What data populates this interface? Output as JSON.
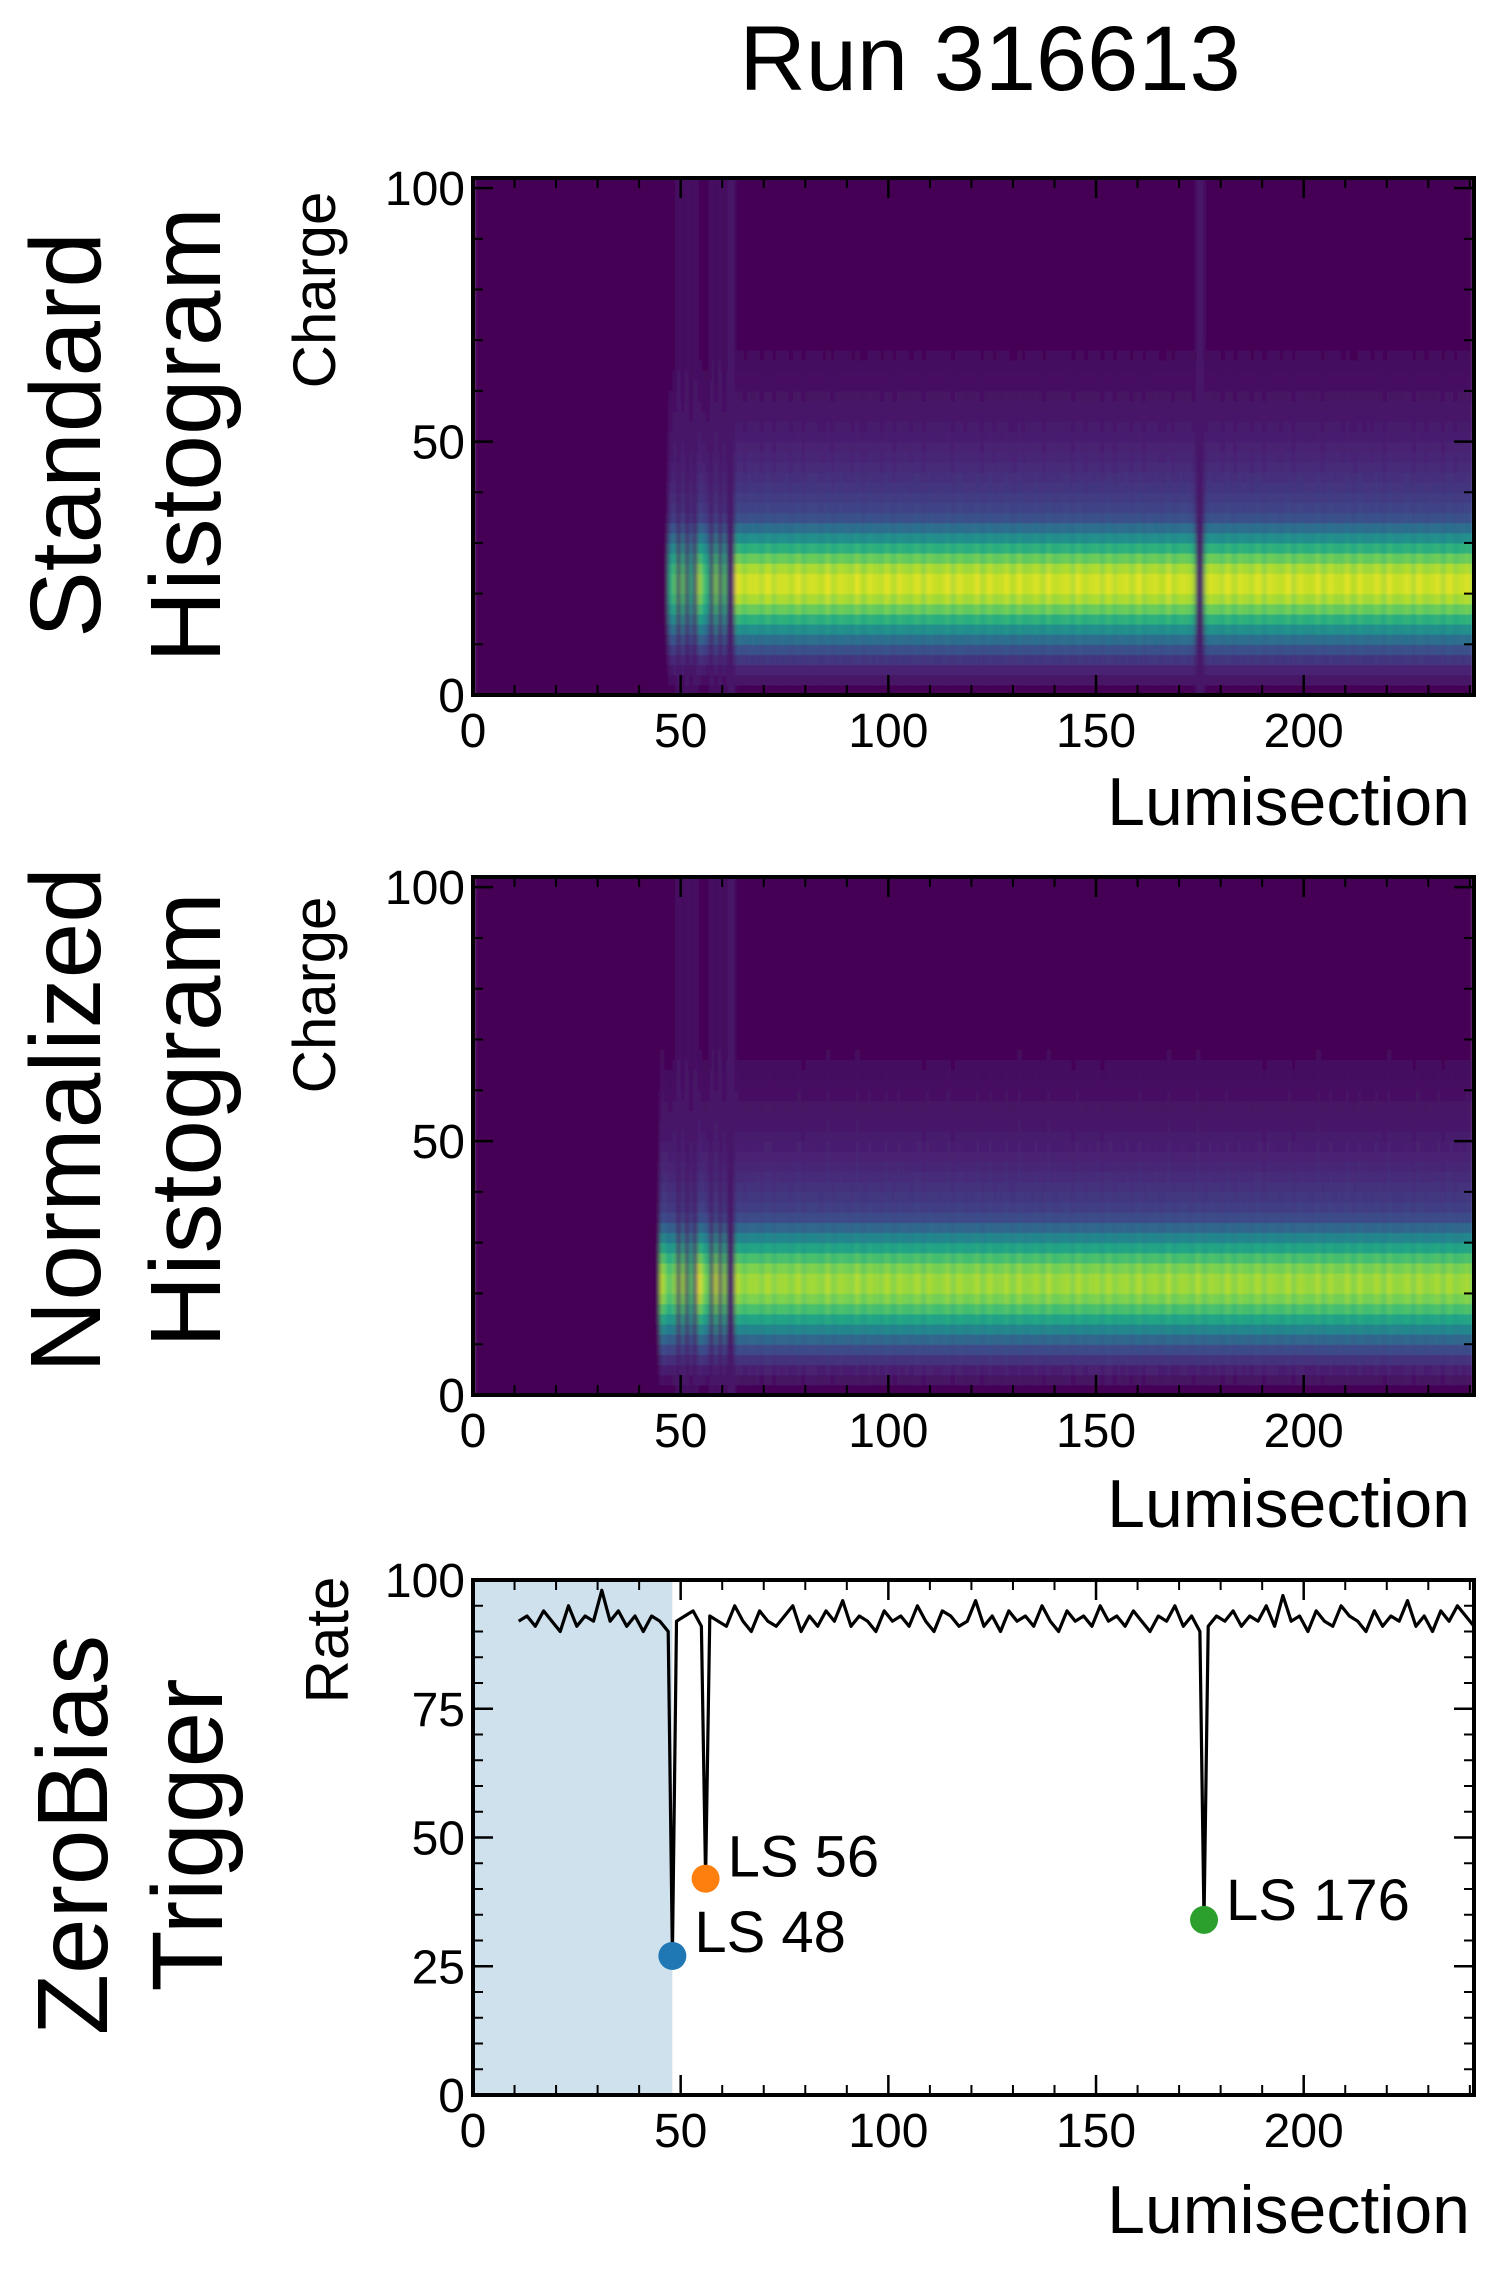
{
  "title": "Run 316613",
  "panels": [
    {
      "id": "standard",
      "row_label": [
        "Standard",
        "Histogram"
      ],
      "type": "heatmap",
      "xlabel": "Lumisection",
      "ylabel": "Charge",
      "xlim": [
        0,
        241
      ],
      "ylim": [
        0,
        102
      ],
      "xticks": [
        0,
        50,
        100,
        150,
        200
      ],
      "yticks": [
        0,
        50,
        100
      ],
      "colormap": "viridis",
      "description_values": {
        "empty_until_ls": 47,
        "band_center_charge": 22,
        "band_halfwidth_charge": 8,
        "gap_ls": [
          49.5,
          51.5,
          53.5,
          57.5,
          59.5,
          62,
          175
        ]
      }
    },
    {
      "id": "normalized",
      "row_label": [
        "Normalized",
        "Histogram"
      ],
      "type": "heatmap",
      "xlabel": "Lumisection",
      "ylabel": "Charge",
      "xlim": [
        0,
        241
      ],
      "ylim": [
        0,
        102
      ],
      "xticks": [
        0,
        50,
        100,
        150,
        200
      ],
      "yticks": [
        0,
        50,
        100
      ],
      "colormap": "viridis",
      "description_values": {
        "empty_until_ls": 45,
        "band_center_charge": 22,
        "band_halfwidth_charge": 8,
        "gap_ls": [
          49.5,
          51.5,
          53.5,
          57.5,
          59.5,
          62
        ]
      }
    },
    {
      "id": "zerobias",
      "row_label": [
        "ZeroBias",
        "Trigger"
      ],
      "type": "line",
      "xlabel": "Lumisection",
      "ylabel": "Rate",
      "xlim": [
        0,
        241
      ],
      "ylim": [
        0,
        100
      ],
      "xticks": [
        0,
        50,
        100,
        150,
        200
      ],
      "yticks": [
        0,
        25,
        50,
        75,
        100
      ],
      "shaded_region_x": [
        0,
        48
      ],
      "shade_color": "#d0e1ee",
      "line_color": "#000000",
      "annotations": [
        {
          "label": "LS 48",
          "x": 48,
          "y": 27,
          "color": "#1f77b4"
        },
        {
          "label": "LS 56",
          "x": 56,
          "y": 42,
          "color": "#ff7f0e"
        },
        {
          "label": "LS 176",
          "x": 176,
          "y": 34,
          "color": "#2ca02c"
        }
      ]
    }
  ],
  "chart_data": [
    {
      "type": "heatmap",
      "title": "Standard Histogram",
      "xlabel": "Lumisection",
      "ylabel": "Charge",
      "x_range": [
        0,
        241
      ],
      "y_range": [
        0,
        102
      ],
      "notes_values": {
        "filled_from_ls": 47,
        "peak_charge": 22,
        "dip_ls": 175
      }
    },
    {
      "type": "heatmap",
      "title": "Normalized Histogram",
      "xlabel": "Lumisection",
      "ylabel": "Charge",
      "x_range": [
        0,
        241
      ],
      "y_range": [
        0,
        102
      ],
      "notes_values": {
        "filled_from_ls": 45,
        "peak_charge": 22
      }
    },
    {
      "type": "line",
      "title": "ZeroBias Trigger",
      "xlabel": "Lumisection",
      "ylabel": "Rate",
      "xlim": [
        0,
        241
      ],
      "ylim": [
        0,
        100
      ],
      "series": [
        {
          "x": [
            11,
            13,
            15,
            17,
            19,
            21,
            23,
            25,
            27,
            29,
            31,
            33,
            35,
            37,
            39,
            41,
            43,
            45,
            47,
            48,
            49,
            51,
            53,
            55,
            56,
            57,
            59,
            61,
            63,
            65,
            67,
            69,
            71,
            73,
            75,
            77,
            79,
            81,
            83,
            85,
            87,
            89,
            91,
            93,
            95,
            97,
            99,
            101,
            103,
            105,
            107,
            109,
            111,
            113,
            115,
            117,
            119,
            121,
            123,
            125,
            127,
            129,
            131,
            133,
            135,
            137,
            139,
            141,
            143,
            145,
            147,
            149,
            151,
            153,
            155,
            157,
            159,
            161,
            163,
            165,
            167,
            169,
            171,
            173,
            175,
            176,
            177,
            179,
            181,
            183,
            185,
            187,
            189,
            191,
            193,
            195,
            197,
            199,
            201,
            203,
            205,
            207,
            209,
            211,
            213,
            215,
            217,
            219,
            221,
            223,
            225,
            227,
            229,
            231,
            233,
            235,
            237,
            239,
            241
          ],
          "y": [
            92,
            93,
            91,
            94,
            92,
            90,
            95,
            91,
            93,
            92,
            98,
            92,
            94,
            91,
            93,
            90,
            93,
            92,
            90,
            27,
            92,
            93,
            94,
            91,
            42,
            93,
            92,
            91,
            95,
            92,
            90,
            94,
            92,
            91,
            93,
            95,
            90,
            93,
            91,
            94,
            92,
            96,
            91,
            93,
            92,
            90,
            94,
            92,
            93,
            91,
            95,
            92,
            90,
            94,
            93,
            91,
            92,
            96,
            91,
            93,
            90,
            94,
            92,
            93,
            91,
            95,
            92,
            90,
            94,
            92,
            93,
            91,
            95,
            92,
            93,
            91,
            94,
            92,
            90,
            93,
            92,
            95,
            91,
            93,
            90,
            34,
            91,
            93,
            92,
            94,
            91,
            93,
            92,
            95,
            91,
            97,
            92,
            93,
            90,
            94,
            92,
            91,
            95,
            93,
            92,
            90,
            94,
            91,
            93,
            92,
            96,
            91,
            93,
            90,
            94,
            92,
            95,
            93,
            91
          ]
        }
      ]
    }
  ]
}
